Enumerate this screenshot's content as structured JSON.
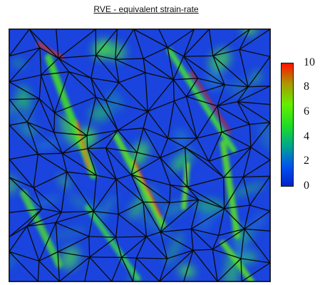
{
  "chart_data": {
    "type": "heatmap",
    "title": "RVE - equivalent strain-rate",
    "colorbar": {
      "min": 0,
      "max": 10,
      "ticks": [
        "10",
        "8",
        "6",
        "4",
        "2",
        "0"
      ],
      "colormap": [
        "#0022cc",
        "#0055ee",
        "#00aa88",
        "#22dd22",
        "#66ee00",
        "#aa9900",
        "#ff1100"
      ]
    },
    "grid": "off",
    "legend_placement": "right"
  }
}
